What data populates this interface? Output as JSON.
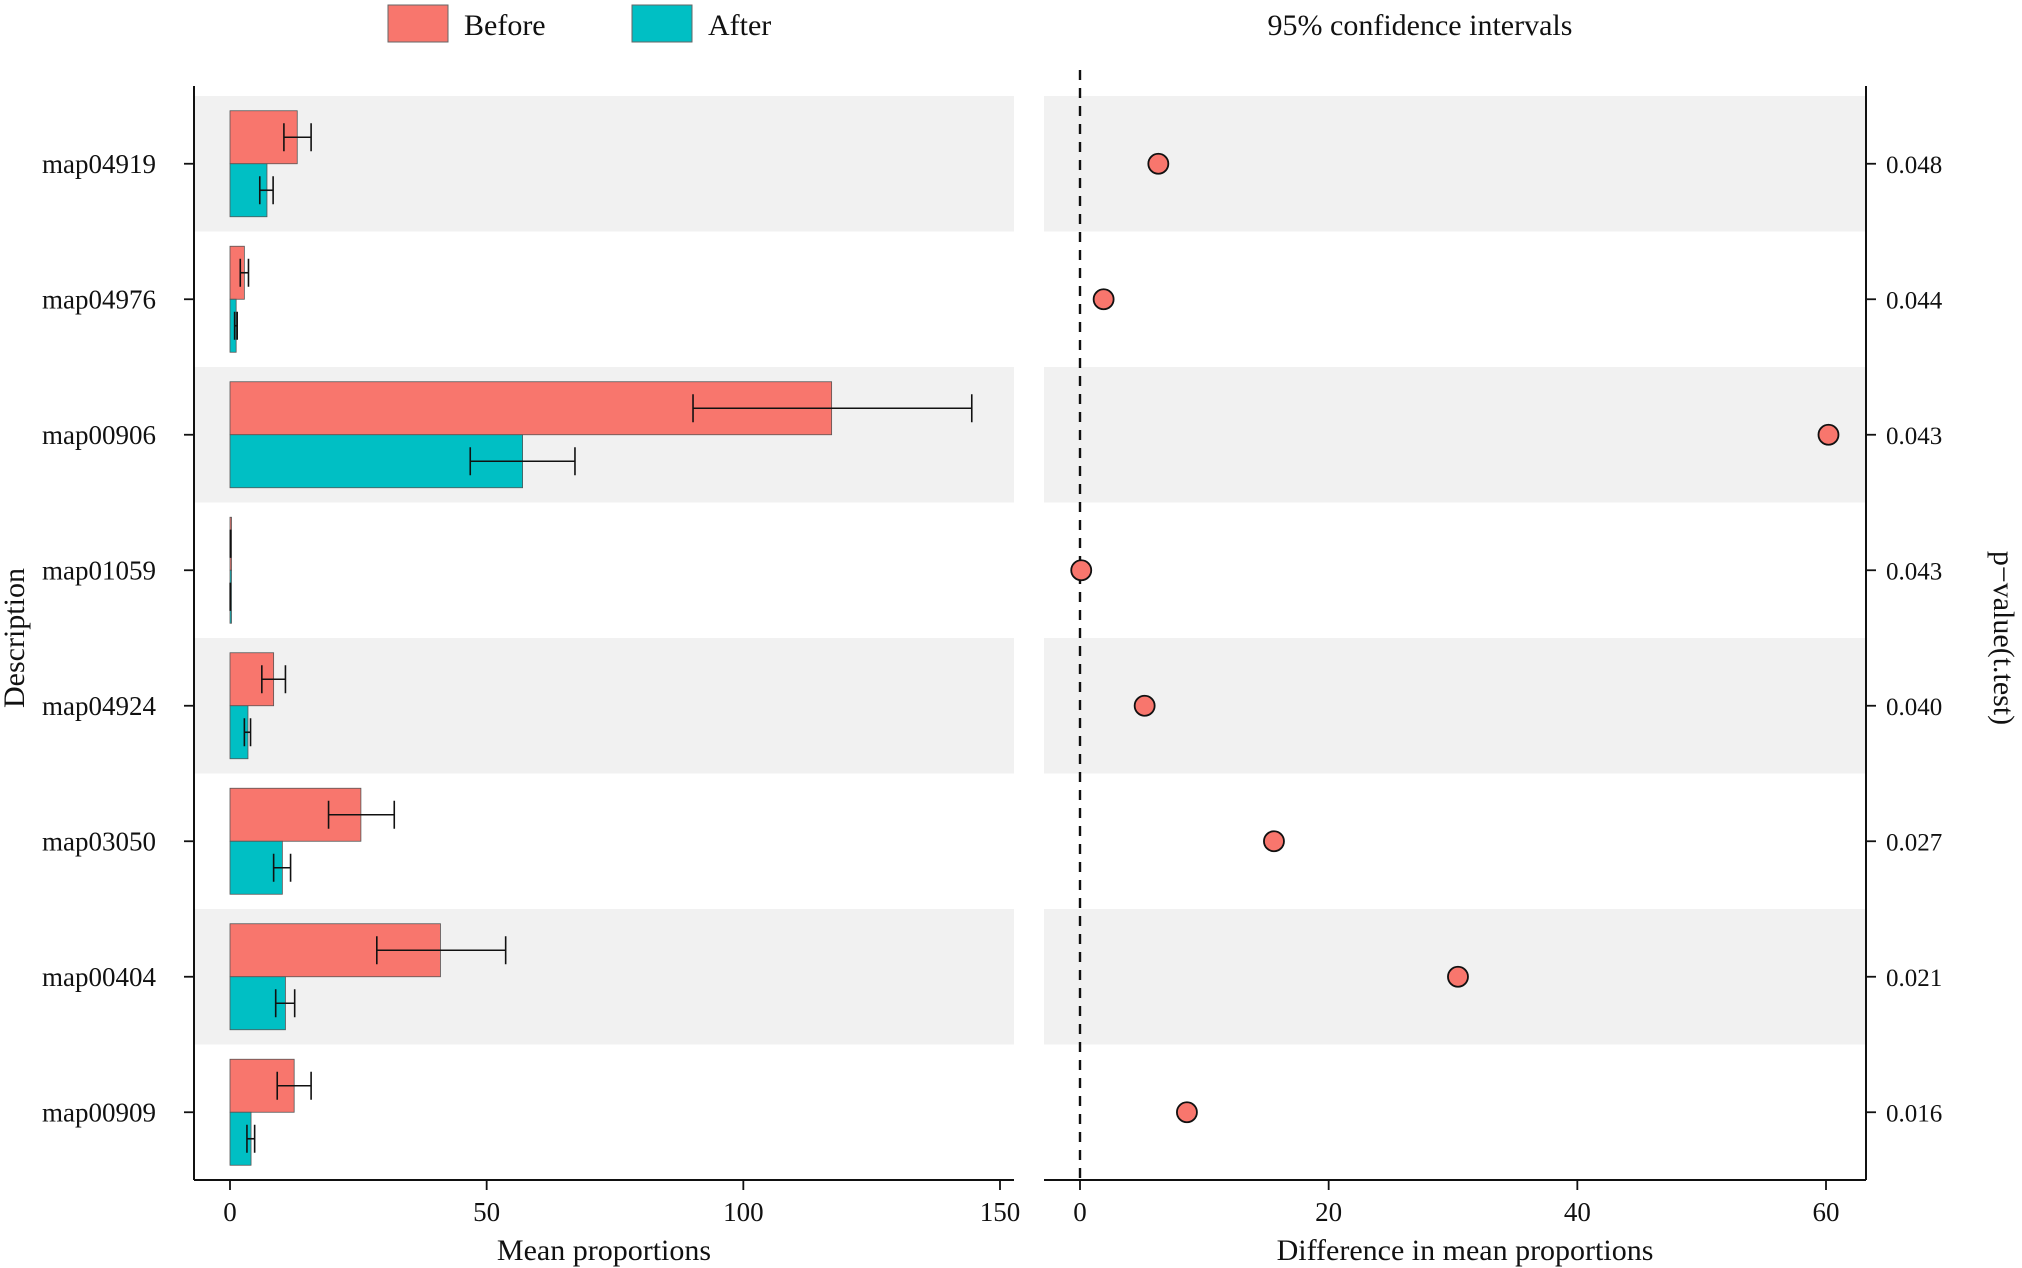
{
  "chart_data": [
    {
      "type": "bar",
      "panel": "left",
      "orientation": "horizontal",
      "xlabel": "Mean proportions",
      "ylabel": "Description",
      "xlim": [
        0,
        150
      ],
      "xticks": [
        0,
        50,
        100,
        150
      ],
      "categories": [
        "map04919",
        "map04976",
        "map00906",
        "map01059",
        "map04924",
        "map03050",
        "map00404",
        "map00909"
      ],
      "series": [
        {
          "name": "Before",
          "color": "#f8766d",
          "values": [
            13.1,
            2.8,
            117.2,
            0.1,
            8.5,
            25.5,
            41,
            12.5
          ],
          "error_low": [
            10.5,
            2.0,
            90.2,
            0.08,
            6.2,
            19.2,
            28.6,
            9.2
          ],
          "error_high": [
            15.8,
            3.6,
            144.5,
            0.12,
            10.8,
            32.0,
            53.7,
            15.8
          ]
        },
        {
          "name": "After",
          "color": "#00bfc4",
          "values": [
            7.2,
            1.2,
            57,
            0.05,
            3.5,
            10.2,
            10.8,
            4.1
          ],
          "error_low": [
            5.8,
            0.9,
            46.8,
            0.04,
            2.8,
            8.5,
            8.9,
            3.3
          ],
          "error_high": [
            8.4,
            1.4,
            67.2,
            0.06,
            4.0,
            11.8,
            12.6,
            4.8
          ]
        }
      ]
    },
    {
      "type": "scatter",
      "panel": "right",
      "title": "95% confidence intervals",
      "xlabel": "Difference in mean proportions",
      "ylabel": "p−value(t.test)",
      "xlim": [
        -3,
        63
      ],
      "xticks": [
        0,
        20,
        40,
        60
      ],
      "reference_line_x": 0,
      "point_color": "#f8766d",
      "categories": [
        "map04919",
        "map04976",
        "map00906",
        "map01059",
        "map04924",
        "map03050",
        "map00404",
        "map00909"
      ],
      "differences": [
        6.3,
        1.9,
        60.2,
        0.1,
        5.2,
        15.6,
        30.4,
        8.6
      ],
      "p_values": [
        "0.048",
        "0.044",
        "0.043",
        "0.043",
        "0.040",
        "0.027",
        "0.021",
        "0.016"
      ]
    }
  ],
  "legend": {
    "items": [
      {
        "label": "Before",
        "color": "#f8766d"
      },
      {
        "label": "After",
        "color": "#00bfc4"
      }
    ]
  }
}
